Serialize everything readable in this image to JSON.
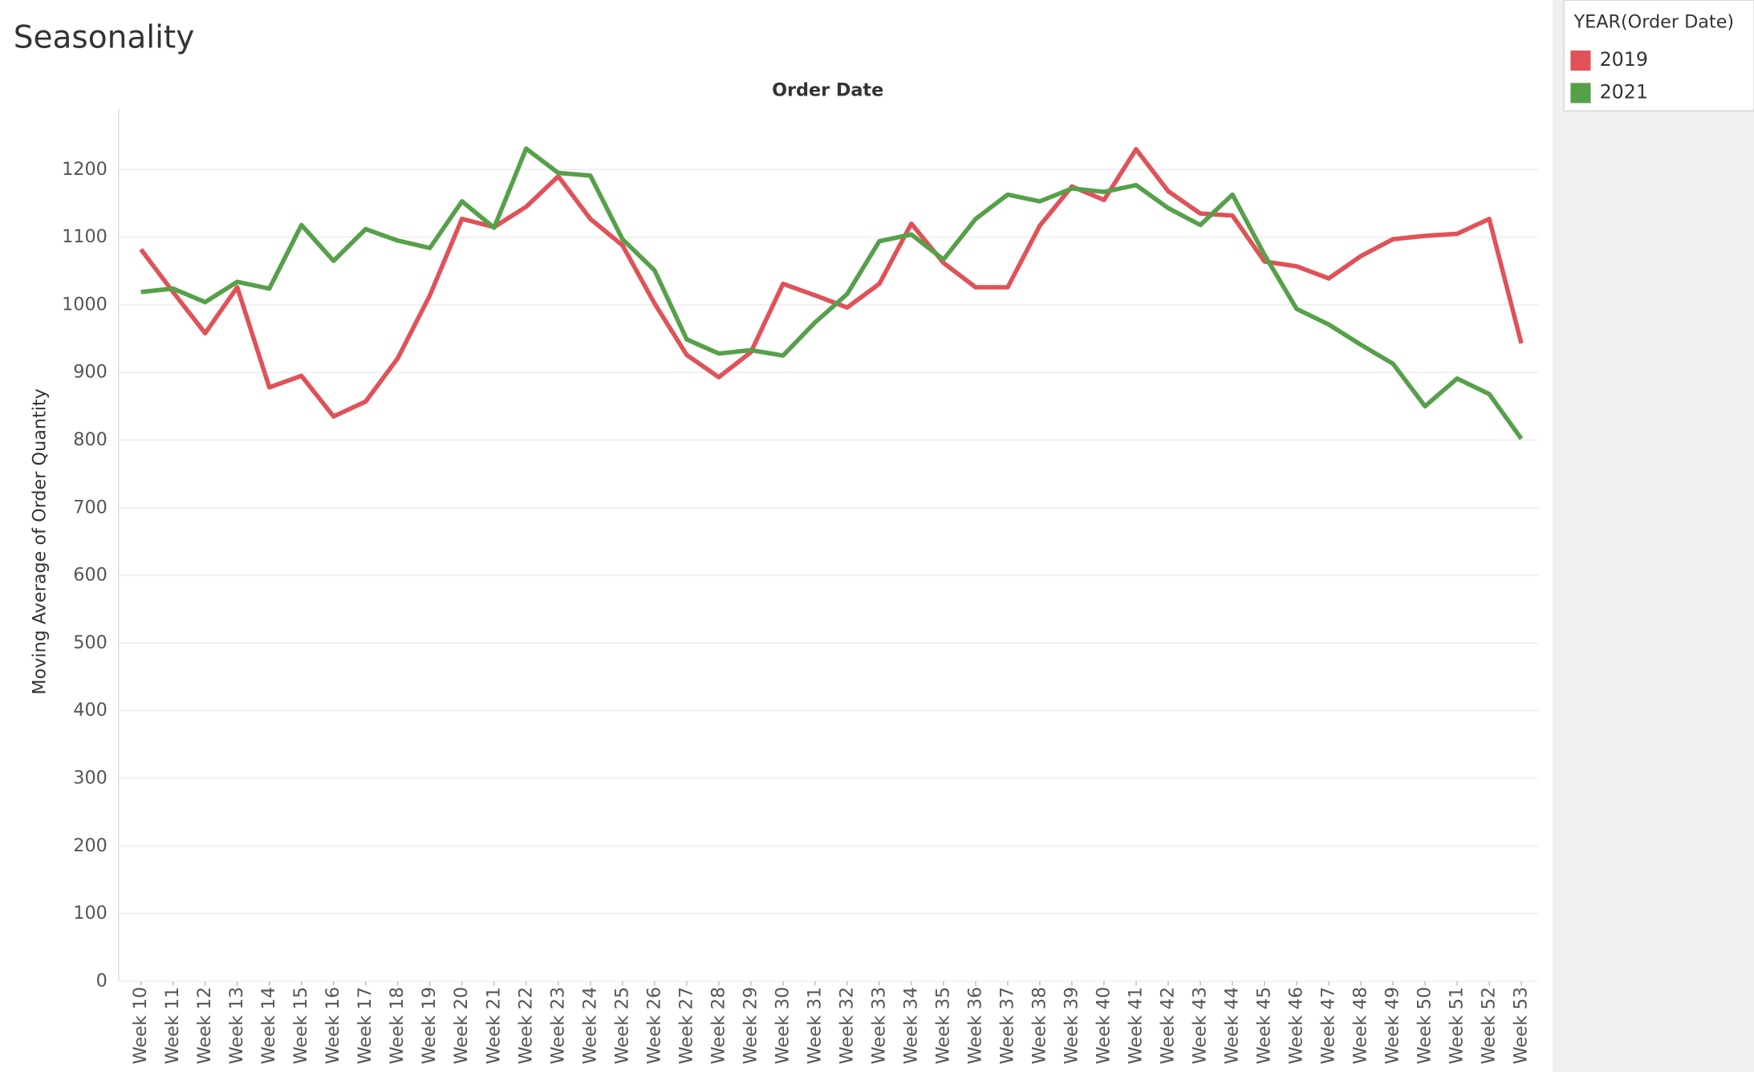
{
  "chart_data": {
    "type": "line",
    "title": "Seasonality",
    "x_axis_title": "Order Date",
    "y_axis_title": "Moving Average of Order Quantity",
    "legend_title": "YEAR(Order Date)",
    "legend_position": "top-right",
    "grid": true,
    "categories": [
      "Week 10",
      "Week 11",
      "Week 12",
      "Week 13",
      "Week 14",
      "Week 15",
      "Week 16",
      "Week 17",
      "Week 18",
      "Week 19",
      "Week 20",
      "Week 21",
      "Week 22",
      "Week 23",
      "Week 24",
      "Week 25",
      "Week 26",
      "Week 27",
      "Week 28",
      "Week 29",
      "Week 30",
      "Week 31",
      "Week 32",
      "Week 33",
      "Week 34",
      "Week 35",
      "Week 36",
      "Week 37",
      "Week 38",
      "Week 39",
      "Week 40",
      "Week 41",
      "Week 42",
      "Week 43",
      "Week 44",
      "Week 45",
      "Week 46",
      "Week 47",
      "Week 48",
      "Week 49",
      "Week 50",
      "Week 51",
      "Week 52",
      "Week 53"
    ],
    "series": [
      {
        "name": "2019",
        "color": "#e05258",
        "values": [
          1082,
          1019,
          958,
          1026,
          878,
          895,
          835,
          857,
          921,
          1014,
          1127,
          1115,
          1145,
          1190,
          1127,
          1088,
          1002,
          926,
          893,
          930,
          1031,
          1014,
          996,
          1031,
          1120,
          1062,
          1026,
          1026,
          1117,
          1175,
          1155,
          1230,
          1168,
          1135,
          1132,
          1064,
          1057,
          1039,
          1072,
          1097,
          1102,
          1105,
          1127,
          943
        ]
      },
      {
        "name": "2021",
        "color": "#56a04a",
        "values": [
          1019,
          1024,
          1004,
          1034,
          1024,
          1118,
          1065,
          1112,
          1095,
          1084,
          1153,
          1114,
          1231,
          1195,
          1191,
          1097,
          1051,
          949,
          928,
          933,
          925,
          974,
          1016,
          1094,
          1104,
          1067,
          1127,
          1163,
          1153,
          1172,
          1167,
          1177,
          1143,
          1118,
          1163,
          1074,
          994,
          971,
          941,
          913,
          850,
          891,
          868,
          802
        ]
      }
    ],
    "ylim": [
      0,
      1290
    ],
    "yticks": [
      0,
      100,
      200,
      300,
      400,
      500,
      600,
      700,
      800,
      900,
      1000,
      1100,
      1200
    ]
  }
}
